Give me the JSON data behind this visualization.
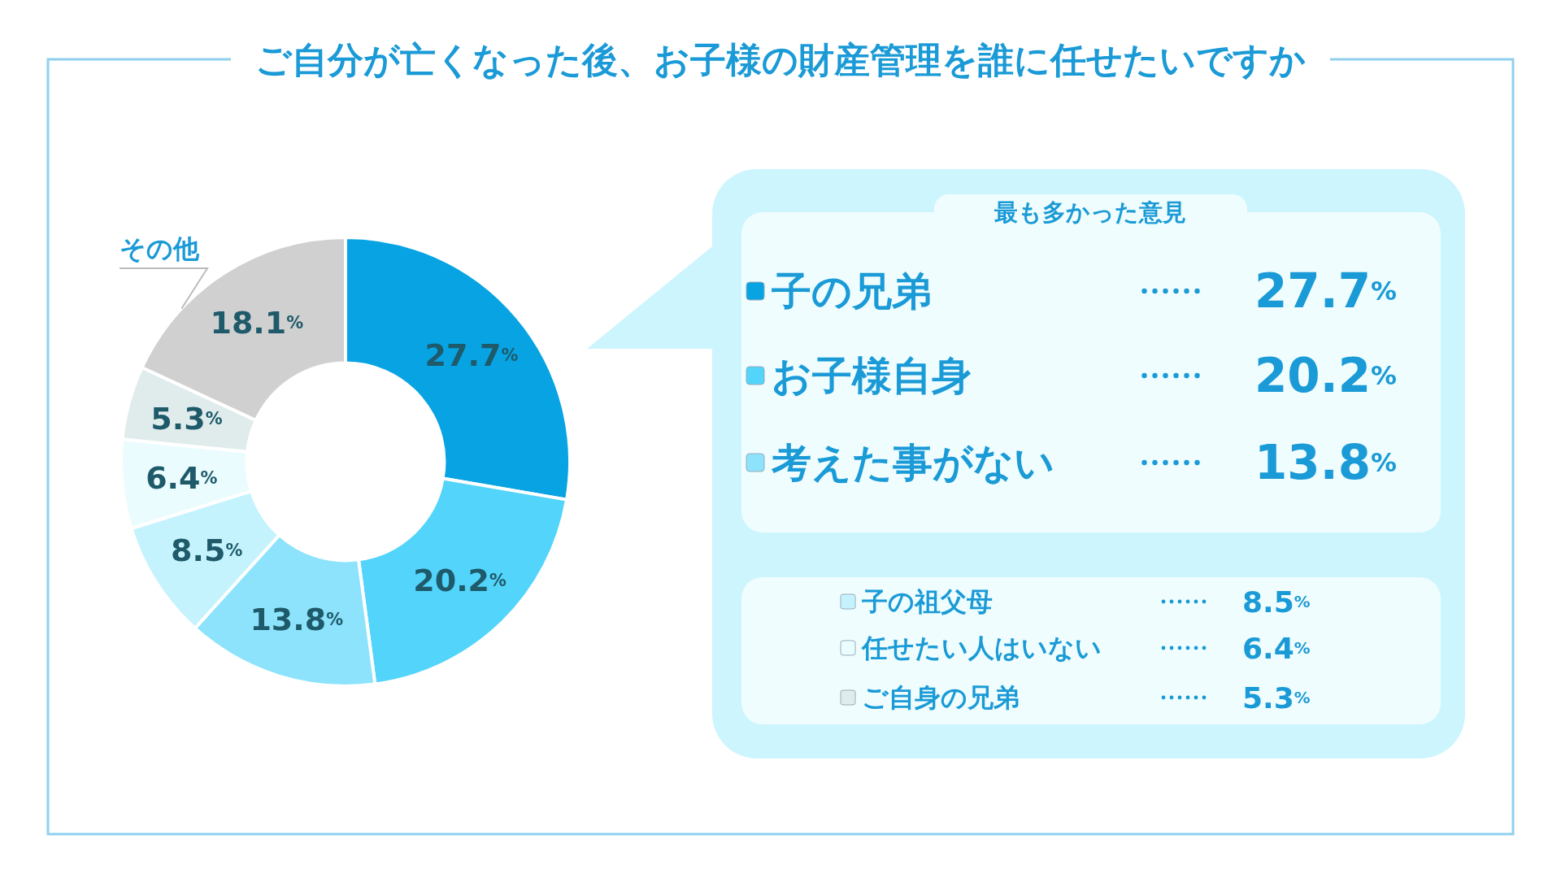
{
  "chart_data": {
    "type": "donut",
    "title": "ご自分が亡くなった後、お子様の財産管理を誰に任せたいですか",
    "categories": [
      "子の兄弟",
      "お子様自身",
      "考えた事がない",
      "子の祖父母",
      "任せたい人はいない",
      "ご自身の兄弟",
      "その他"
    ],
    "values": [
      27.7,
      20.2,
      13.8,
      8.5,
      6.4,
      5.3,
      18.1
    ],
    "value_labels": [
      "27.7%",
      "20.2%",
      "13.8%",
      "8.5%",
      "6.4%",
      "5.3%",
      "18.1%"
    ],
    "colors": [
      "#07a3e2",
      "#53d4fb",
      "#8ce3fb",
      "#c5f3fd",
      "#ebfcfe",
      "#e0ecec",
      "#d0d0d0"
    ],
    "annotations": [
      "最も多かった意見"
    ],
    "legend": "right"
  }
}
